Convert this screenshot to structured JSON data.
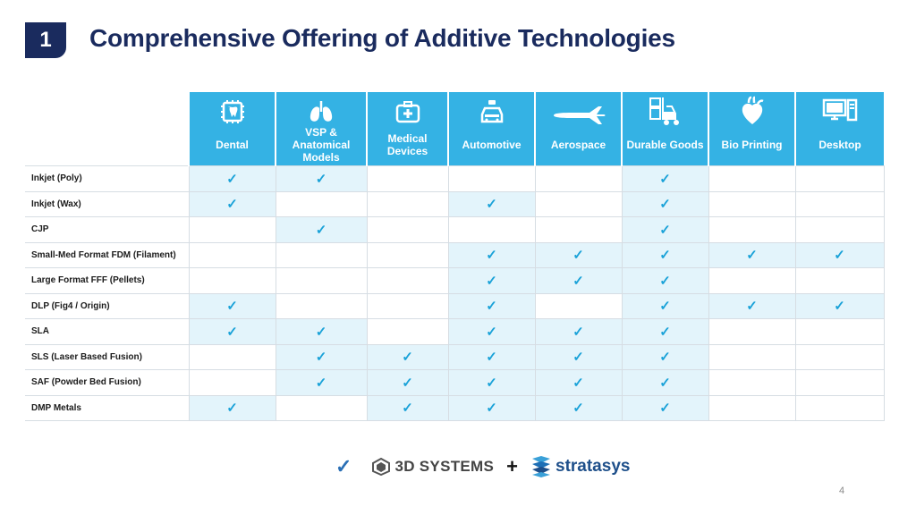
{
  "slide": {
    "number": "1",
    "title": "Comprehensive Offering of Additive Technologies",
    "page": "4"
  },
  "columns": [
    {
      "label": "Dental",
      "icon": "tooth-chip-icon"
    },
    {
      "label": "VSP & Anatomical Models",
      "icon": "lungs-icon"
    },
    {
      "label": "Medical Devices",
      "icon": "medical-kit-icon"
    },
    {
      "label": "Automotive",
      "icon": "car-icon"
    },
    {
      "label": "Aerospace",
      "icon": "airplane-icon"
    },
    {
      "label": "Durable Goods",
      "icon": "forklift-icon"
    },
    {
      "label": "Bio Printing",
      "icon": "heart-icon"
    },
    {
      "label": "Desktop",
      "icon": "computer-icon"
    }
  ],
  "rows": [
    {
      "label": "Inkjet (Poly)",
      "cells": [
        1,
        1,
        0,
        0,
        0,
        1,
        0,
        0
      ],
      "shade": [
        1,
        1,
        0,
        0,
        0,
        1,
        0,
        0
      ]
    },
    {
      "label": "Inkjet (Wax)",
      "cells": [
        1,
        0,
        0,
        1,
        0,
        1,
        0,
        0
      ],
      "shade": [
        1,
        0,
        0,
        1,
        0,
        1,
        0,
        0
      ]
    },
    {
      "label": "CJP",
      "cells": [
        0,
        1,
        0,
        0,
        0,
        1,
        0,
        0
      ],
      "shade": [
        0,
        1,
        0,
        0,
        0,
        1,
        0,
        0
      ]
    },
    {
      "label": "Small-Med Format FDM (Filament)",
      "cells": [
        0,
        0,
        0,
        1,
        1,
        1,
        1,
        1
      ],
      "shade": [
        0,
        0,
        0,
        1,
        1,
        1,
        1,
        1
      ]
    },
    {
      "label": "Large Format FFF (Pellets)",
      "cells": [
        0,
        0,
        0,
        1,
        1,
        1,
        0,
        0
      ],
      "shade": [
        0,
        0,
        0,
        1,
        1,
        1,
        0,
        0
      ]
    },
    {
      "label": "DLP (Fig4 / Origin)",
      "cells": [
        1,
        0,
        0,
        1,
        0,
        1,
        1,
        1
      ],
      "shade": [
        1,
        0,
        0,
        1,
        0,
        1,
        1,
        1
      ]
    },
    {
      "label": "SLA",
      "cells": [
        1,
        1,
        0,
        1,
        1,
        1,
        0,
        0
      ],
      "shade": [
        1,
        1,
        0,
        1,
        1,
        1,
        0,
        0
      ]
    },
    {
      "label": "SLS (Laser Based Fusion)",
      "cells": [
        0,
        1,
        1,
        1,
        1,
        1,
        0,
        0
      ],
      "shade": [
        0,
        1,
        1,
        1,
        1,
        1,
        0,
        0
      ]
    },
    {
      "label": "SAF (Powder Bed Fusion)",
      "cells": [
        0,
        1,
        1,
        1,
        1,
        1,
        0,
        0
      ],
      "shade": [
        0,
        1,
        1,
        1,
        1,
        1,
        0,
        0
      ]
    },
    {
      "label": "DMP Metals",
      "cells": [
        1,
        0,
        1,
        1,
        1,
        1,
        0,
        0
      ],
      "shade": [
        1,
        0,
        1,
        1,
        1,
        1,
        0,
        0
      ]
    }
  ],
  "check_glyph": "✓",
  "footer": {
    "check": "✓",
    "brand1": "3D SYSTEMS",
    "plus": "+",
    "brand2": "stratasys"
  },
  "colors": {
    "header_bg": "#34b2e4",
    "shade": "#e3f4fb",
    "check": "#1aa2d8",
    "title": "#1a2b5e"
  }
}
